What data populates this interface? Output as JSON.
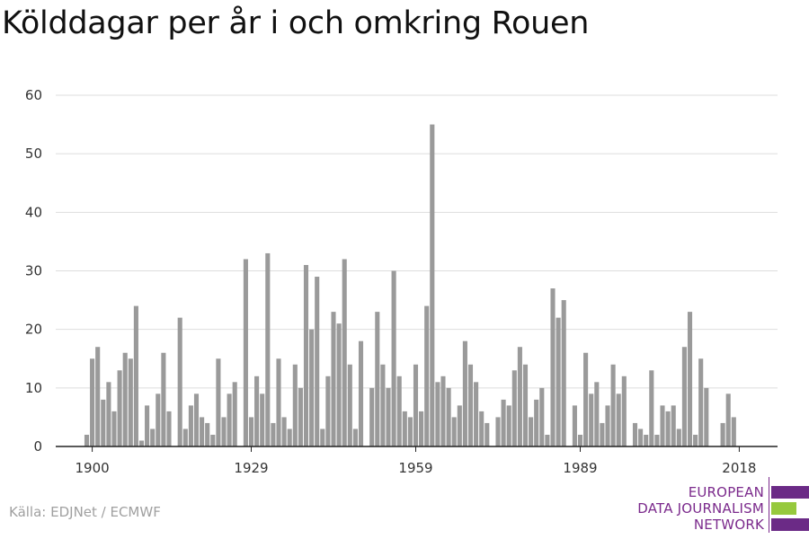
{
  "title": "Kölddagar per år i och omkring Rouen",
  "source": "Källa: EDJNet / ECMWF",
  "logo": {
    "line1": "EUROPEAN",
    "line2": "DATA JOURNALISM",
    "line3": "NETWORK",
    "colors": {
      "purple": "#6b2a86",
      "green": "#96c93d"
    }
  },
  "chart_data": {
    "type": "bar",
    "title": "Kölddagar per år i och omkring Rouen",
    "xlabel": "",
    "ylabel": "",
    "bar_color": "#9a9a9a",
    "grid": true,
    "ylim": [
      0,
      60
    ],
    "yticks": [
      0,
      10,
      20,
      30,
      40,
      50,
      60
    ],
    "xticks": [
      1900,
      1929,
      1959,
      1989,
      2018
    ],
    "x_range": [
      1899,
      2019
    ],
    "x": [
      1899,
      1900,
      1901,
      1902,
      1903,
      1904,
      1905,
      1906,
      1907,
      1908,
      1909,
      1910,
      1911,
      1912,
      1913,
      1914,
      1915,
      1916,
      1917,
      1918,
      1919,
      1920,
      1921,
      1922,
      1923,
      1924,
      1925,
      1926,
      1927,
      1928,
      1929,
      1930,
      1931,
      1932,
      1933,
      1934,
      1935,
      1936,
      1937,
      1938,
      1939,
      1940,
      1941,
      1942,
      1943,
      1944,
      1945,
      1946,
      1947,
      1948,
      1949,
      1950,
      1951,
      1952,
      1953,
      1954,
      1955,
      1956,
      1957,
      1958,
      1959,
      1960,
      1961,
      1962,
      1963,
      1964,
      1965,
      1966,
      1967,
      1968,
      1969,
      1970,
      1971,
      1972,
      1973,
      1974,
      1975,
      1976,
      1977,
      1978,
      1979,
      1980,
      1981,
      1982,
      1983,
      1984,
      1985,
      1986,
      1987,
      1988,
      1989,
      1990,
      1991,
      1992,
      1993,
      1994,
      1995,
      1996,
      1997,
      1998,
      1999,
      2000,
      2001,
      2002,
      2003,
      2004,
      2005,
      2006,
      2007,
      2008,
      2009,
      2010,
      2011,
      2012,
      2013,
      2014,
      2015,
      2016,
      2017,
      2018
    ],
    "values": [
      2,
      15,
      17,
      8,
      11,
      6,
      13,
      16,
      15,
      24,
      1,
      7,
      3,
      9,
      16,
      6,
      0,
      22,
      3,
      7,
      9,
      5,
      4,
      2,
      15,
      5,
      9,
      11,
      0,
      32,
      5,
      12,
      9,
      33,
      4,
      15,
      5,
      3,
      14,
      10,
      31,
      20,
      29,
      3,
      12,
      23,
      21,
      32,
      14,
      3,
      18,
      0,
      10,
      23,
      14,
      10,
      30,
      12,
      6,
      5,
      14,
      6,
      24,
      55,
      11,
      12,
      10,
      5,
      7,
      18,
      14,
      11,
      6,
      4,
      0,
      5,
      8,
      7,
      13,
      17,
      14,
      5,
      8,
      10,
      2,
      27,
      22,
      25,
      0,
      7,
      2,
      16,
      9,
      11,
      4,
      7,
      14,
      9,
      12,
      0,
      4,
      3,
      2,
      13,
      2,
      7,
      6,
      7,
      3,
      17,
      23,
      2,
      15,
      10,
      0,
      0,
      4,
      9,
      5,
      0
    ]
  }
}
